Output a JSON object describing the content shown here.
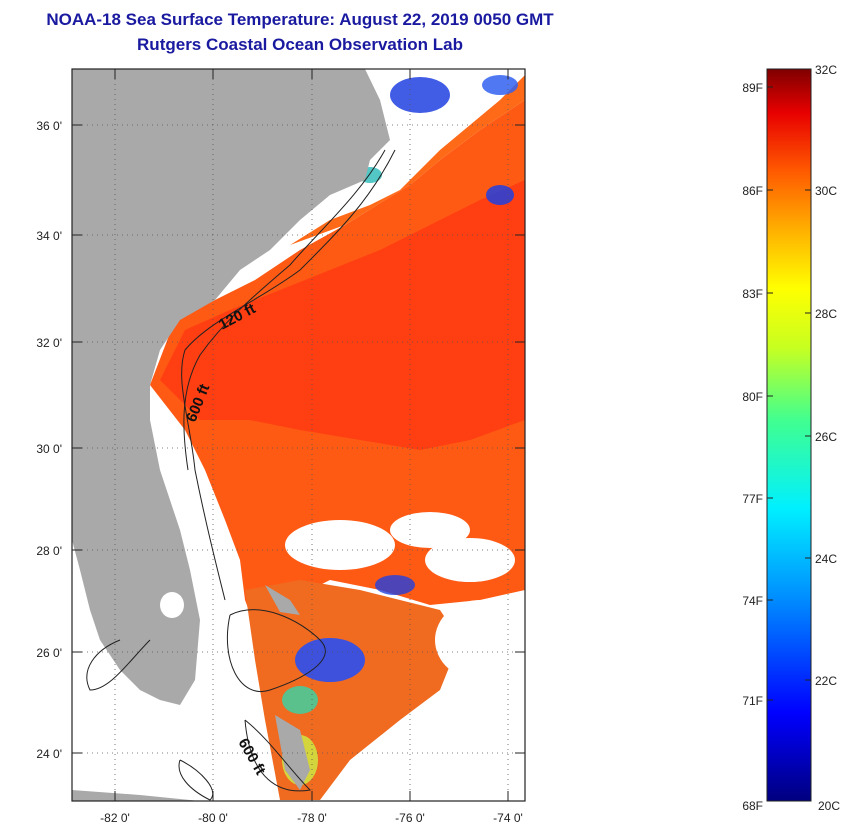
{
  "title": {
    "line1": "NOAA-18 Sea Surface Temperature:  August 22, 2019 0050 GMT",
    "line2": "Rutgers Coastal Ocean Observation Lab"
  },
  "map": {
    "lat_labels": [
      "36 0'",
      "34 0'",
      "32 0'",
      "30 0'",
      "28 0'",
      "26 0'",
      "24 0'"
    ],
    "lon_labels": [
      "-82 0'",
      "-80 0'",
      "-78 0'",
      "-76 0'",
      "-74 0'"
    ],
    "contours": {
      "c120": "120 ft",
      "c600a": "600 ft",
      "c600b": "600 ft"
    },
    "colors": {
      "land": "#a9a9a9",
      "cloud": "#ffffff",
      "warm": "#ff5a14",
      "hot": "#ff2a10"
    }
  },
  "colorbar": {
    "fahrenheit": [
      "89F",
      "86F",
      "83F",
      "80F",
      "77F",
      "74F",
      "71F",
      "68F"
    ],
    "celsius": [
      "32C",
      "30C",
      "28C",
      "26C",
      "24C",
      "22C",
      "20C"
    ]
  }
}
